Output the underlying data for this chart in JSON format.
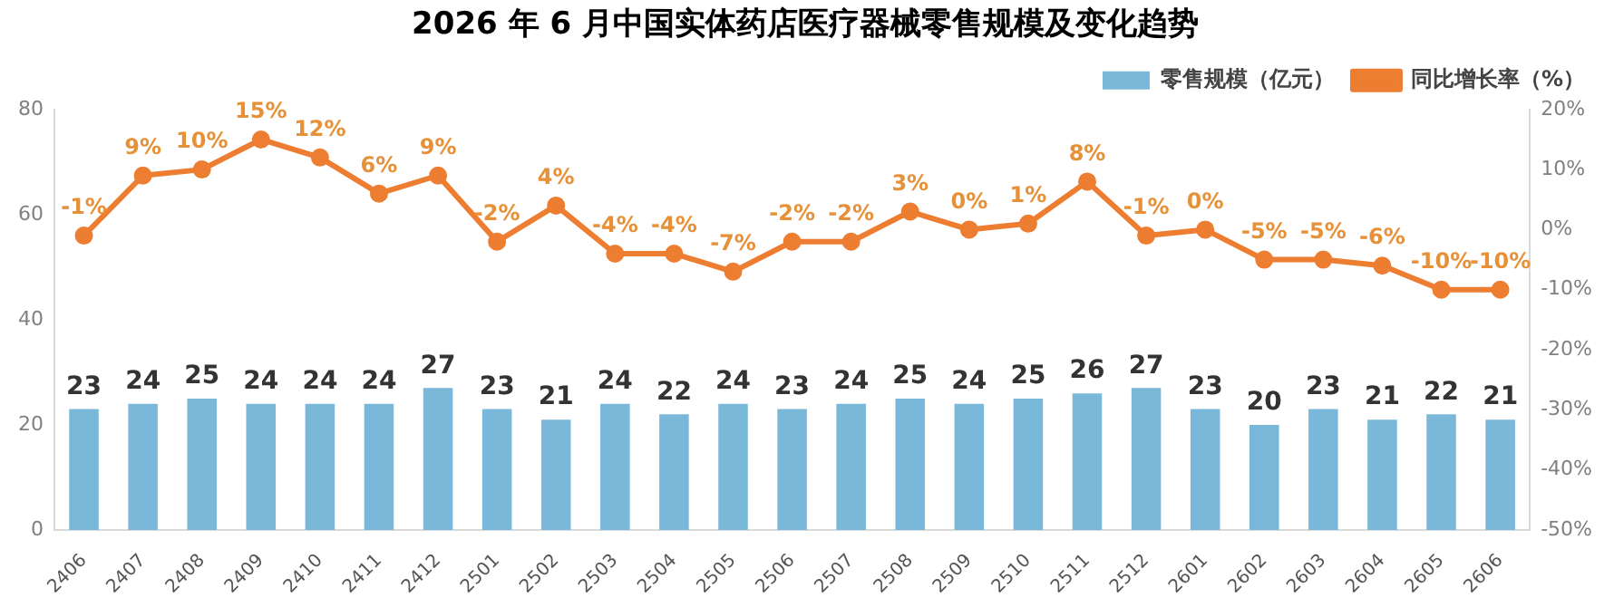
{
  "chart_data": {
    "type": "bar",
    "title": "2026 年 6 月中国实体药店医疗器械零售规模及变化趋势",
    "categories": [
      "2406",
      "2407",
      "2408",
      "2409",
      "2410",
      "2411",
      "2412",
      "2501",
      "2502",
      "2503",
      "2504",
      "2505",
      "2506",
      "2507",
      "2508",
      "2509",
      "2510",
      "2511",
      "2512",
      "2601",
      "2602",
      "2603",
      "2604",
      "2605",
      "2606"
    ],
    "series": [
      {
        "name": "零售规模（亿元）",
        "color": "#7ab8d9",
        "values": [
          23,
          24,
          25,
          24,
          24,
          24,
          27,
          23,
          21,
          24,
          22,
          24,
          23,
          24,
          25,
          24,
          25,
          26,
          27,
          23,
          20,
          23,
          21,
          22,
          21
        ],
        "value_labels": [
          "23",
          "24",
          "25",
          "24",
          "24",
          "24",
          "27",
          "23",
          "21",
          "24",
          "22",
          "24",
          "23",
          "24",
          "25",
          "24",
          "25",
          "26",
          "27",
          "23",
          "20",
          "23",
          "21",
          "22",
          "21"
        ]
      },
      {
        "name": "同比增长率（%）",
        "type": "line",
        "axis": "y2",
        "color": "#ed7d31",
        "values": [
          -1,
          9,
          10,
          15,
          12,
          6,
          9,
          -2,
          4,
          -4,
          -4,
          -7,
          -2,
          -2,
          3,
          0,
          1,
          8,
          -1,
          0,
          -5,
          -5,
          -6,
          -10,
          -10
        ],
        "value_labels": [
          "-1%",
          "9%",
          "10%",
          "15%",
          "12%",
          "6%",
          "9%",
          "-2%",
          "4%",
          "-4%",
          "-4%",
          "-7%",
          "-2%",
          "-2%",
          "3%",
          "0%",
          "1%",
          "8%",
          "-1%",
          "0%",
          "-5%",
          "-5%",
          "-6%",
          "-10%",
          "-10%"
        ]
      }
    ],
    "ylim": [
      0,
      80
    ],
    "yticks": [
      0,
      20,
      40,
      60,
      80
    ],
    "y2lim": [
      -50,
      20
    ],
    "y2ticks": [
      {
        "value": -50,
        "label": "-50%"
      },
      {
        "value": -40,
        "label": "-40%"
      },
      {
        "value": -30,
        "label": "-30%"
      },
      {
        "value": -20,
        "label": "-20%"
      },
      {
        "value": -10,
        "label": "-10%"
      },
      {
        "value": 0,
        "label": "0%"
      },
      {
        "value": 10,
        "label": "10%"
      },
      {
        "value": 20,
        "label": "20%"
      }
    ],
    "grid": false,
    "legend": "top right",
    "marker": "circle",
    "line_style": "solid"
  }
}
